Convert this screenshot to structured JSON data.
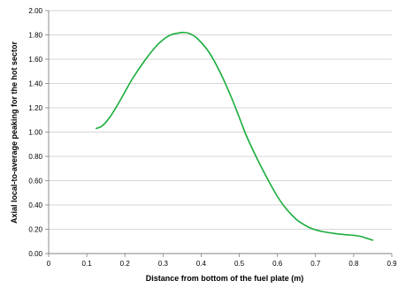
{
  "chart_data": {
    "type": "line",
    "title": "",
    "xlabel": "Distance from bottom of the fuel plate (m)",
    "ylabel": "Axial local-to-average peaking for the hot sector",
    "xlim": [
      0,
      0.9
    ],
    "ylim": [
      0,
      2.0
    ],
    "x_ticks": [
      "0",
      "0.1",
      "0.2",
      "0.3",
      "0.4",
      "0.5",
      "0.6",
      "0.7",
      "0.8",
      "0.9"
    ],
    "y_ticks": [
      "0.00",
      "0.20",
      "0.40",
      "0.60",
      "0.80",
      "1.00",
      "1.20",
      "1.40",
      "1.60",
      "1.80",
      "2.00"
    ],
    "grid": "horizontal",
    "legend": "none",
    "series": [
      {
        "color": "#1aad3c",
        "x": [
          0.125,
          0.14,
          0.16,
          0.18,
          0.2,
          0.22,
          0.25,
          0.28,
          0.3,
          0.32,
          0.34,
          0.355,
          0.37,
          0.39,
          0.42,
          0.45,
          0.48,
          0.5,
          0.52,
          0.55,
          0.58,
          0.6,
          0.62,
          0.65,
          0.68,
          0.7,
          0.72,
          0.75,
          0.78,
          0.8,
          0.82,
          0.835,
          0.85
        ],
        "y": [
          1.03,
          1.05,
          1.12,
          1.22,
          1.33,
          1.44,
          1.58,
          1.7,
          1.76,
          1.8,
          1.815,
          1.82,
          1.81,
          1.77,
          1.66,
          1.49,
          1.28,
          1.12,
          0.96,
          0.76,
          0.58,
          0.47,
          0.38,
          0.28,
          0.22,
          0.195,
          0.18,
          0.165,
          0.155,
          0.15,
          0.14,
          0.125,
          0.11
        ]
      }
    ]
  }
}
